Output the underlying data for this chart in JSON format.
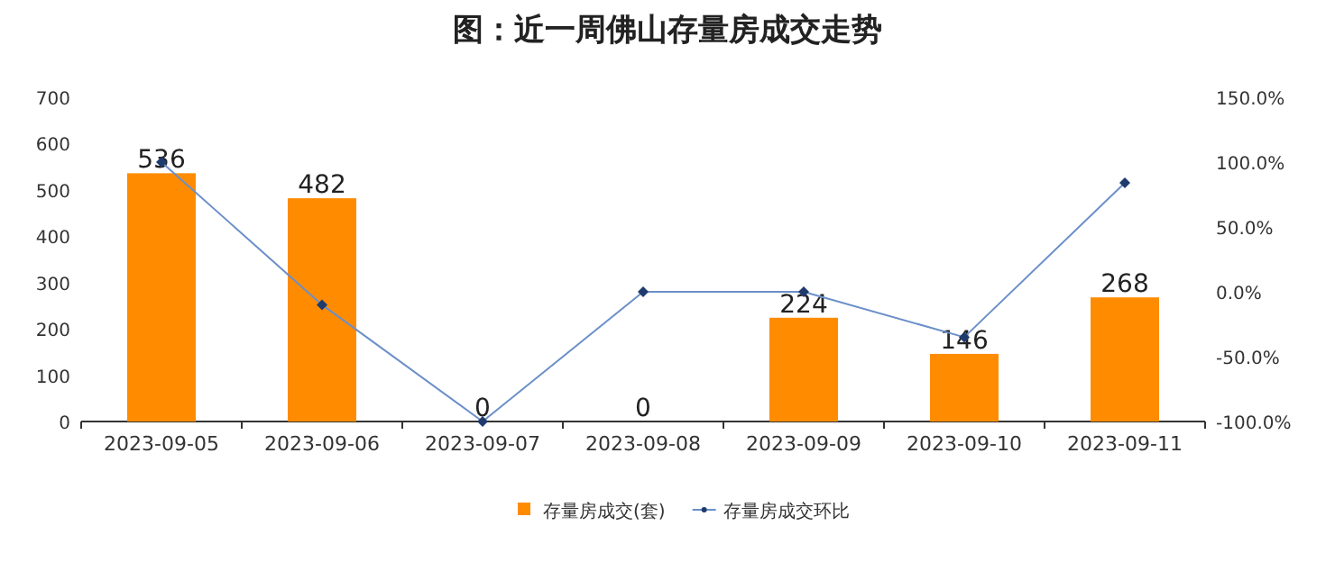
{
  "chart_data": {
    "type": "bar",
    "title": "图：近一周佛山存量房成交走势",
    "categories": [
      "2023-09-05",
      "2023-09-06",
      "2023-09-07",
      "2023-09-08",
      "2023-09-09",
      "2023-09-10",
      "2023-09-11"
    ],
    "series": [
      {
        "name": "存量房成交(套)",
        "color": "#ff8c00",
        "values": [
          536,
          482,
          0,
          0,
          224,
          146,
          268
        ],
        "value_labels": [
          "536",
          "482",
          "0",
          "0",
          "224",
          "146",
          "268"
        ]
      },
      {
        "name": "存量房成交环比",
        "type": "line",
        "axis": "y2",
        "color": "#6b8fc9",
        "marker": "diamond",
        "values": [
          100,
          -10,
          -100,
          0,
          0,
          -35,
          84
        ]
      }
    ],
    "ylim": [
      0,
      700
    ],
    "yticks": [
      0,
      100,
      200,
      300,
      400,
      500,
      600,
      700
    ],
    "y2lim": [
      -100,
      150
    ],
    "y2ticks": [
      {
        "value": -100,
        "label": "-100.0%"
      },
      {
        "value": -50,
        "label": "-50.0%"
      },
      {
        "value": 0,
        "label": "0.0%"
      },
      {
        "value": 50,
        "label": "50.0%"
      },
      {
        "value": 100,
        "label": "100.0%"
      },
      {
        "value": 150,
        "label": "150.0%"
      }
    ],
    "legend": "bottom"
  }
}
